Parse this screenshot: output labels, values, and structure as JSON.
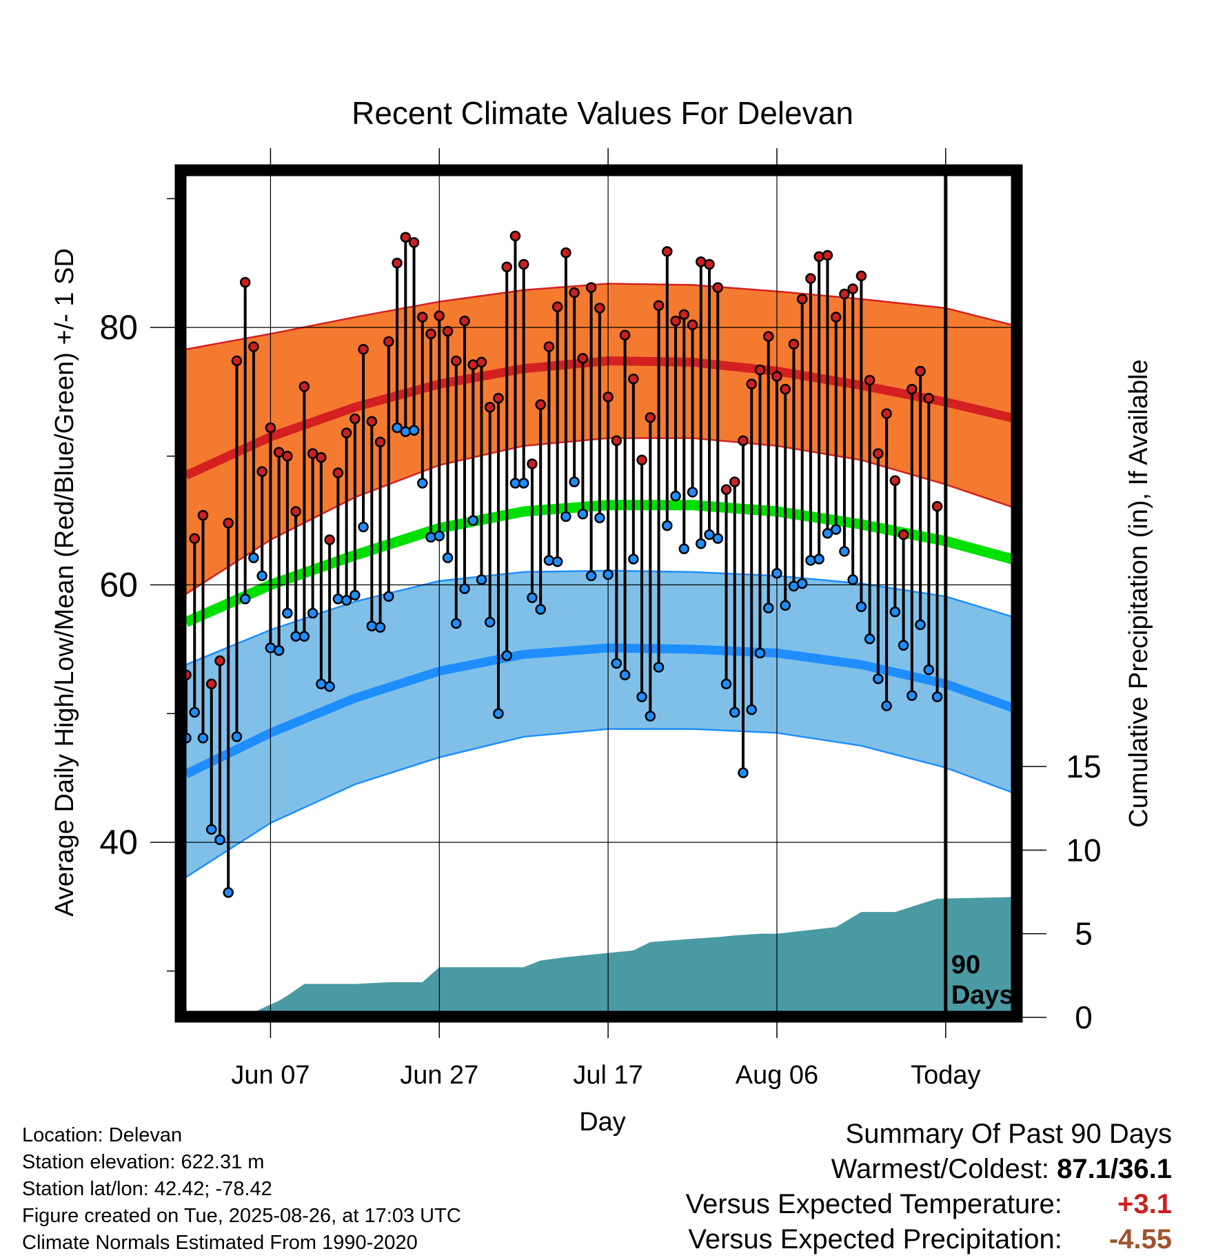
{
  "chart_data": {
    "type": "line",
    "title": "Recent Climate Values For Delevan",
    "xlabel": "Day",
    "ylabel": "Average Daily High/Low/Mean (Red/Blue/Green) +/- 1 SD",
    "y2label": "Cumulative Precipitation (in), If Available",
    "x_ticks": [
      "Jun 07",
      "Jun 27",
      "Jul 17",
      "Aug 06",
      "Today"
    ],
    "y_ticks": [
      40,
      60,
      80
    ],
    "y2_ticks": [
      0,
      5,
      10,
      15
    ],
    "ylim": [
      26,
      92
    ],
    "y2lim": [
      0,
      50
    ],
    "x_range_days": [
      -90,
      9
    ],
    "today_label": "90 Days",
    "grid": true,
    "colors": {
      "high_band": "#f47a30",
      "high_mean": "#d42020",
      "mean": "#00e000",
      "low_band": "#80c0e8",
      "low_mean": "#1e8eff",
      "precip": "#4a9aa4"
    },
    "normals": {
      "day": [
        -90,
        -80,
        -70,
        -60,
        -50,
        -40,
        -30,
        -20,
        -10,
        0,
        9
      ],
      "high_mean": [
        68.5,
        71.5,
        73.8,
        75.6,
        76.8,
        77.4,
        77.3,
        76.6,
        75.5,
        74.2,
        72.8
      ],
      "high_upper": [
        78.3,
        79.5,
        80.8,
        82.0,
        82.9,
        83.4,
        83.3,
        82.8,
        82.2,
        81.5,
        80.0
      ],
      "high_lower": [
        59.3,
        63.5,
        66.8,
        69.3,
        70.8,
        71.4,
        71.4,
        70.8,
        69.7,
        67.8,
        65.8
      ],
      "mean": [
        57.1,
        60.0,
        62.3,
        64.4,
        65.7,
        66.2,
        66.2,
        65.7,
        64.7,
        63.4,
        61.8
      ],
      "low_mean": [
        45.3,
        48.5,
        51.2,
        53.3,
        54.6,
        55.1,
        55.0,
        54.7,
        53.8,
        52.3,
        50.2
      ],
      "low_upper": [
        53.8,
        56.5,
        58.7,
        60.3,
        61.0,
        61.1,
        61.0,
        60.7,
        60.1,
        59.1,
        57.3
      ],
      "low_lower": [
        37.3,
        41.5,
        44.5,
        46.6,
        48.2,
        48.8,
        48.8,
        48.5,
        47.5,
        45.8,
        43.6
      ]
    },
    "series": [
      {
        "name": "High",
        "values": [
          53.0,
          63.6,
          65.4,
          52.3,
          54.1,
          64.8,
          77.4,
          83.5,
          78.5,
          68.8,
          72.2,
          70.3,
          70.0,
          65.7,
          75.4,
          70.2,
          69.9,
          63.5,
          68.7,
          71.8,
          72.9,
          78.3,
          72.7,
          71.1,
          78.9,
          85.0,
          87.0,
          86.6,
          80.8,
          79.5,
          80.9,
          79.7,
          77.4,
          80.5,
          77.1,
          77.3,
          73.8,
          74.5,
          84.7,
          87.1,
          84.9,
          69.4,
          74.0,
          78.5,
          81.6,
          85.8,
          82.7,
          77.6,
          83.1,
          81.5,
          74.6,
          71.2,
          79.4,
          76.0,
          69.7,
          73.0,
          81.7,
          85.9,
          80.5,
          81.0,
          80.2,
          85.1,
          84.9,
          83.1,
          67.4,
          68.0,
          71.2,
          75.6,
          76.7,
          79.3,
          76.2,
          75.2,
          78.7,
          82.2,
          83.8,
          85.5,
          85.6,
          80.8,
          82.6,
          83.0,
          84.0,
          75.9,
          70.2,
          73.3,
          68.1,
          63.9,
          75.2,
          76.6,
          74.5,
          66.1
        ]
      },
      {
        "name": "Low",
        "values": [
          48.1,
          50.1,
          48.1,
          41.0,
          40.2,
          36.1,
          48.2,
          58.9,
          62.1,
          60.7,
          55.1,
          54.9,
          57.8,
          56.0,
          56.0,
          57.8,
          52.3,
          52.1,
          58.9,
          58.8,
          59.2,
          64.5,
          56.8,
          56.7,
          59.1,
          72.2,
          71.9,
          72.0,
          67.9,
          63.7,
          63.8,
          62.1,
          57.0,
          59.7,
          65.0,
          60.4,
          57.1,
          50.0,
          54.5,
          67.9,
          67.9,
          59.0,
          58.1,
          61.9,
          61.8,
          65.3,
          68.0,
          65.5,
          60.7,
          65.2,
          60.8,
          53.9,
          53.0,
          62.0,
          51.3,
          49.8,
          53.6,
          64.6,
          66.9,
          62.8,
          67.2,
          63.2,
          63.9,
          63.6,
          52.3,
          50.1,
          45.4,
          50.3,
          54.7,
          58.2,
          60.9,
          58.4,
          59.9,
          60.1,
          61.9,
          62.0,
          64.0,
          64.3,
          62.6,
          60.4,
          58.3,
          55.8,
          52.7,
          50.6,
          57.9,
          55.3,
          51.4,
          56.9,
          53.4,
          51.3
        ]
      }
    ],
    "precip": {
      "day": [
        -90,
        -82,
        -79,
        -78,
        -76,
        -74,
        -70,
        -66,
        -62,
        -60,
        -58,
        -50,
        -48,
        -45,
        -41,
        -37,
        -35,
        -30,
        -27,
        -25,
        -22,
        -20,
        -13,
        -10,
        -6,
        -1,
        9
      ],
      "value": [
        0.2,
        0.3,
        1.0,
        1.3,
        2.0,
        2.0,
        2.0,
        2.1,
        2.1,
        3.0,
        3.0,
        3.0,
        3.4,
        3.6,
        3.8,
        4.0,
        4.5,
        4.7,
        4.8,
        4.9,
        5.0,
        5.0,
        5.4,
        6.3,
        6.3,
        7.1,
        7.2
      ]
    }
  },
  "footer": {
    "location": "Location: Delevan",
    "elevation": "Station elevation: 622.31 m",
    "latlon": "Station lat/lon: 42.42; -78.42",
    "created": "Figure created on Tue, 2025-08-26, at 17:03 UTC",
    "normals": "Climate Normals Estimated From 1990-2020"
  },
  "summary": {
    "heading": "Summary Of Past 90 Days",
    "warm_cold_label": "Warmest/Coldest:",
    "warm_cold_value": "87.1/36.1",
    "temp_label": "Versus Expected Temperature:",
    "temp_value": "+3.1",
    "temp_color": "#cc2020",
    "precip_label": "Versus Expected Precipitation:",
    "precip_value": "-4.55",
    "precip_color": "#a0522d"
  }
}
